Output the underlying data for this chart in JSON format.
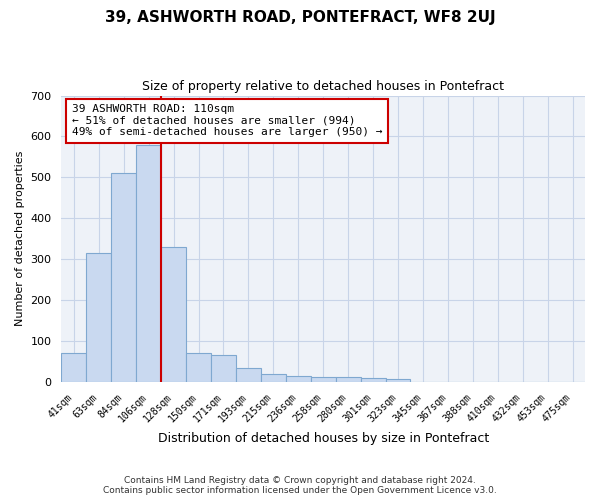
{
  "title": "39, ASHWORTH ROAD, PONTEFRACT, WF8 2UJ",
  "subtitle": "Size of property relative to detached houses in Pontefract",
  "xlabel": "Distribution of detached houses by size in Pontefract",
  "ylabel": "Number of detached properties",
  "categories": [
    "41sqm",
    "63sqm",
    "84sqm",
    "106sqm",
    "128sqm",
    "150sqm",
    "171sqm",
    "193sqm",
    "215sqm",
    "236sqm",
    "258sqm",
    "280sqm",
    "301sqm",
    "323sqm",
    "345sqm",
    "367sqm",
    "388sqm",
    "410sqm",
    "432sqm",
    "453sqm",
    "475sqm"
  ],
  "values": [
    70,
    315,
    510,
    580,
    330,
    70,
    65,
    35,
    20,
    15,
    12,
    12,
    10,
    8,
    0,
    0,
    0,
    0,
    0,
    0,
    0
  ],
  "bar_color": "#c9d9f0",
  "bar_edgecolor": "#7fa8d0",
  "vline_x": 3.5,
  "vline_color": "#cc0000",
  "annotation_line1": "39 ASHWORTH ROAD: 110sqm",
  "annotation_line2": "← 51% of detached houses are smaller (994)",
  "annotation_line3": "49% of semi-detached houses are larger (950) →",
  "annotation_box_facecolor": "#ffffff",
  "annotation_box_edgecolor": "#cc0000",
  "ylim": [
    0,
    700
  ],
  "yticks": [
    0,
    100,
    200,
    300,
    400,
    500,
    600,
    700
  ],
  "grid_color": "#c8d4e8",
  "background_color": "#eef2f8",
  "footer_line1": "Contains HM Land Registry data © Crown copyright and database right 2024.",
  "footer_line2": "Contains public sector information licensed under the Open Government Licence v3.0."
}
